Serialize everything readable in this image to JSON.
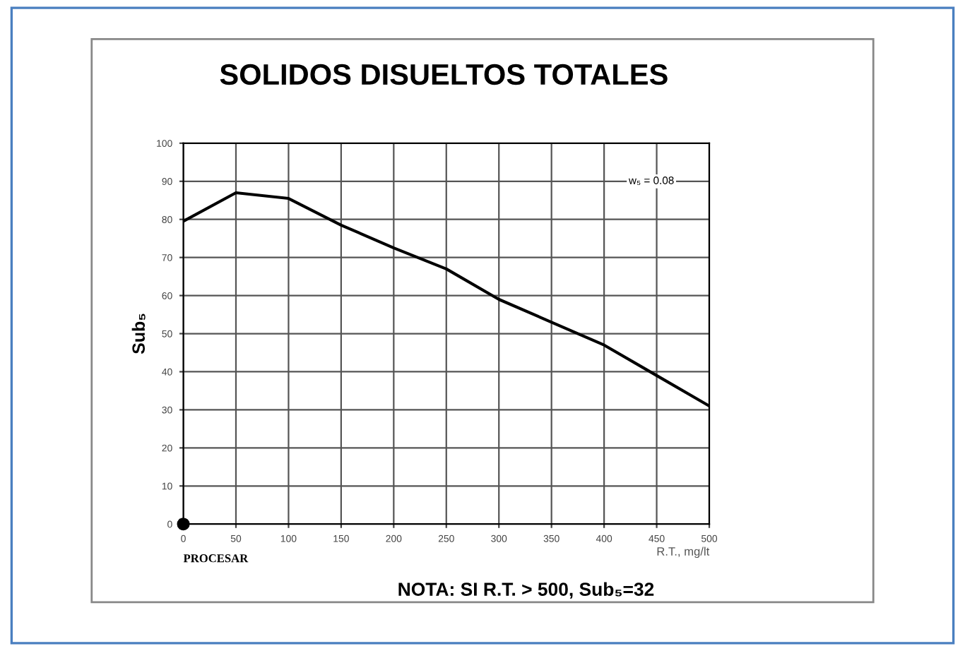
{
  "chart_data": {
    "type": "line",
    "title": "SOLIDOS DISUELTOS TOTALES",
    "xlabel": "R.T., mg/lt",
    "ylabel": "Sub₅",
    "x": [
      0,
      50,
      100,
      150,
      200,
      250,
      300,
      350,
      400,
      450,
      500
    ],
    "series": [
      {
        "color": "#000000",
        "values": [
          79.5,
          87,
          85.5,
          78.5,
          72.5,
          67,
          59,
          53,
          47,
          39,
          31
        ]
      },
      {
        "type": "scatter",
        "marker": "circle",
        "color": "#000000",
        "x": [
          0
        ],
        "values": [
          0
        ]
      }
    ],
    "xlim": [
      0,
      500
    ],
    "xticks": [
      0,
      50,
      100,
      150,
      200,
      250,
      300,
      350,
      400,
      450,
      500
    ],
    "ylim": [
      0,
      100
    ],
    "yticks": [
      0,
      10,
      20,
      30,
      40,
      50,
      60,
      70,
      80,
      90,
      100
    ],
    "grid": true,
    "line_style": "solid",
    "annotations": [
      "w₅ = 0.08",
      "PROCESAR",
      "NOTA: SI R.T. > 500, Sub₅=32"
    ]
  }
}
